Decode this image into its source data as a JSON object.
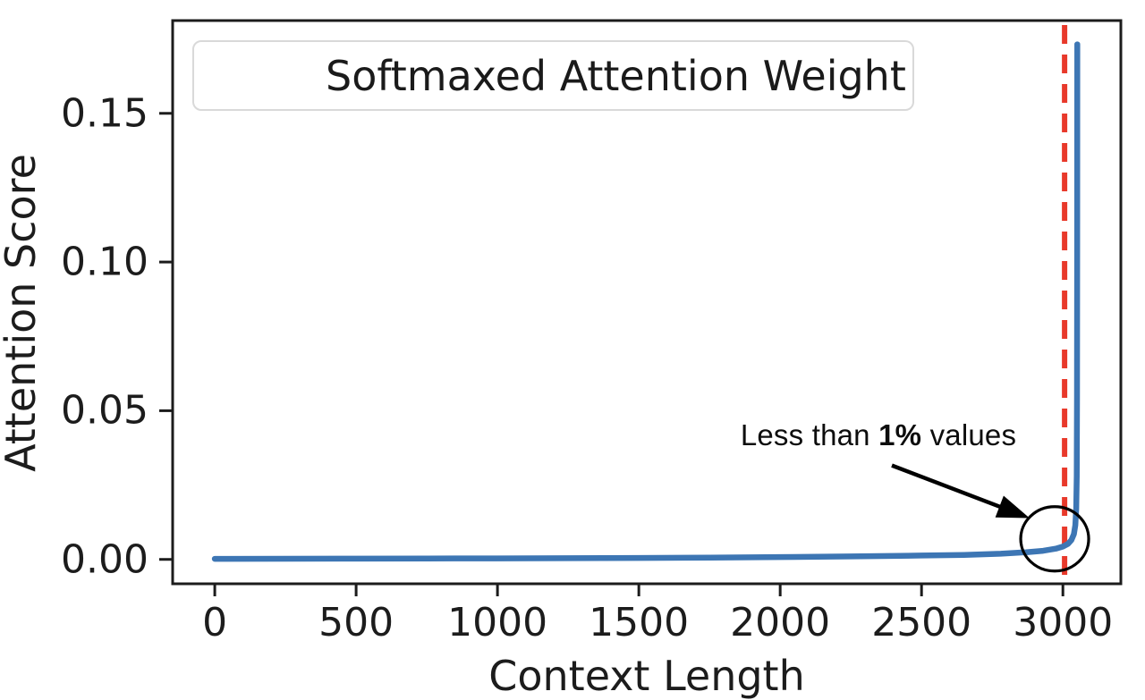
{
  "chart_data": {
    "type": "line",
    "xlabel": "Context Length",
    "ylabel": "Attention Score",
    "xlim": [
      -149,
      3205
    ],
    "ylim": [
      -0.0082,
      0.1812
    ],
    "grid": false,
    "frame_color": "#1c1c1c",
    "xticks": [
      {
        "v": 0,
        "label": "0"
      },
      {
        "v": 500,
        "label": "500"
      },
      {
        "v": 1000,
        "label": "1000"
      },
      {
        "v": 1500,
        "label": "1500"
      },
      {
        "v": 2000,
        "label": "2000"
      },
      {
        "v": 2500,
        "label": "2500"
      },
      {
        "v": 3000,
        "label": "3000"
      }
    ],
    "yticks": [
      {
        "v": 0,
        "label": "0.00"
      },
      {
        "v": 0.05,
        "label": "0.05"
      },
      {
        "v": 0.1,
        "label": "0.10"
      },
      {
        "v": 0.15,
        "label": "0.15"
      }
    ],
    "legend": {
      "position": "upper left",
      "entries": [
        "Softmaxed Attention Weight"
      ]
    },
    "series": [
      {
        "name": "Softmaxed Attention Weight",
        "color": "#3d76b4",
        "points": [
          [
            0,
            0.0002
          ],
          [
            250,
            0.00022
          ],
          [
            500,
            0.00025
          ],
          [
            750,
            0.0003
          ],
          [
            1000,
            0.00035
          ],
          [
            1250,
            0.0004
          ],
          [
            1500,
            0.0005
          ],
          [
            1750,
            0.0006
          ],
          [
            2000,
            0.0008
          ],
          [
            2250,
            0.001
          ],
          [
            2500,
            0.0013
          ],
          [
            2650,
            0.0015
          ],
          [
            2780,
            0.0019
          ],
          [
            2870,
            0.0024
          ],
          [
            2930,
            0.0029
          ],
          [
            2975,
            0.0036
          ],
          [
            3000,
            0.0043
          ],
          [
            3018,
            0.0052
          ],
          [
            3030,
            0.0065
          ],
          [
            3039,
            0.0085
          ],
          [
            3044,
            0.0115
          ],
          [
            3047,
            0.017
          ],
          [
            3049,
            0.028
          ],
          [
            3050,
            0.055
          ],
          [
            3050.5,
            0.11
          ],
          [
            3051,
            0.1732
          ]
        ]
      }
    ],
    "vline": {
      "x": 3006,
      "color": "#e8392b",
      "style": "dashed"
    },
    "annotation": {
      "prefix": "Less than ",
      "bold_part": "1%",
      "suffix": " values",
      "arrow_from": [
        2395,
        0.0316
      ],
      "arrow_to": [
        2882,
        0.0139
      ],
      "circle_at": [
        2971,
        0.0069
      ],
      "circle_radius_px": 38
    }
  }
}
